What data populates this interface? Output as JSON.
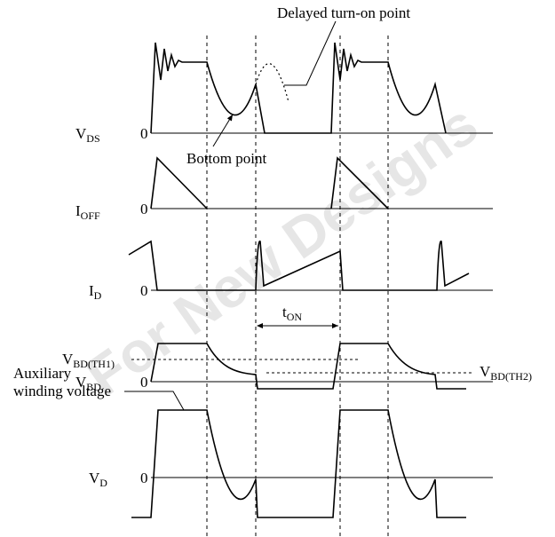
{
  "watermark": "For New Designs",
  "signals": [
    {
      "label": {
        "main": "V",
        "sub": "DS"
      },
      "zero": "0"
    },
    {
      "label": {
        "main": "I",
        "sub": "OFF"
      },
      "zero": "0"
    },
    {
      "label": {
        "main": "I",
        "sub": "D"
      },
      "zero": "0"
    },
    {
      "label": {
        "main": "V",
        "sub": "BD"
      },
      "zero": "0"
    },
    {
      "label": {
        "main": "V",
        "sub": "D"
      },
      "zero": "0"
    }
  ],
  "annotations": {
    "delayed_turn_on": "Delayed turn-on point",
    "bottom_point": "Bottom point",
    "t_on": {
      "main": "t",
      "sub": "ON"
    },
    "vbd_th1": {
      "main": "V",
      "sub": "BD(TH1)"
    },
    "vbd_th2": {
      "main": "V",
      "sub": "BD(TH2)"
    },
    "auxiliary": [
      "Auxiliary",
      "winding voltage"
    ]
  }
}
